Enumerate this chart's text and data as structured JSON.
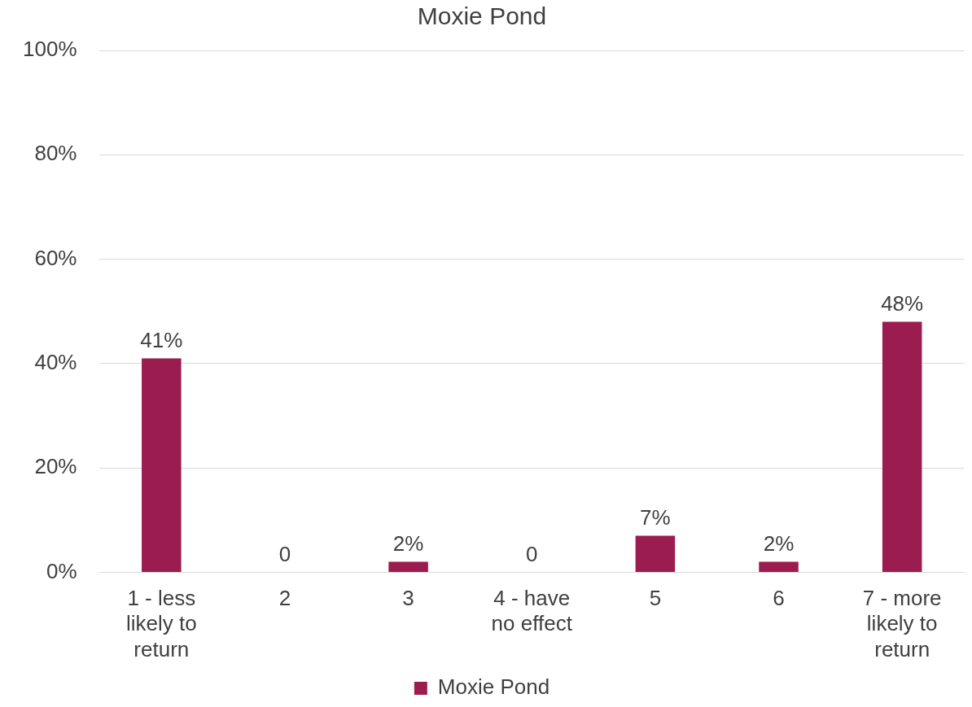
{
  "chart_data": {
    "type": "bar",
    "title": "Moxie Pond",
    "categories": [
      "1 - less likely to return",
      "2",
      "3",
      "4 - have no effect",
      "5",
      "6",
      "7 - more likely to return"
    ],
    "series": [
      {
        "name": "Moxie Pond",
        "color": "#9b1c4f",
        "values": [
          41,
          0,
          2,
          0,
          7,
          2,
          48
        ],
        "value_labels": [
          "41%",
          "0",
          "2%",
          "0",
          "7%",
          "2%",
          "48%"
        ]
      }
    ],
    "ylim": [
      0,
      100
    ],
    "yticks": [
      {
        "value": 0,
        "label": "0%"
      },
      {
        "value": 20,
        "label": "20%"
      },
      {
        "value": 40,
        "label": "40%"
      },
      {
        "value": 60,
        "label": "60%"
      },
      {
        "value": 80,
        "label": "80%"
      },
      {
        "value": 100,
        "label": "100%"
      }
    ],
    "grid": "y",
    "legend": "bottom"
  }
}
